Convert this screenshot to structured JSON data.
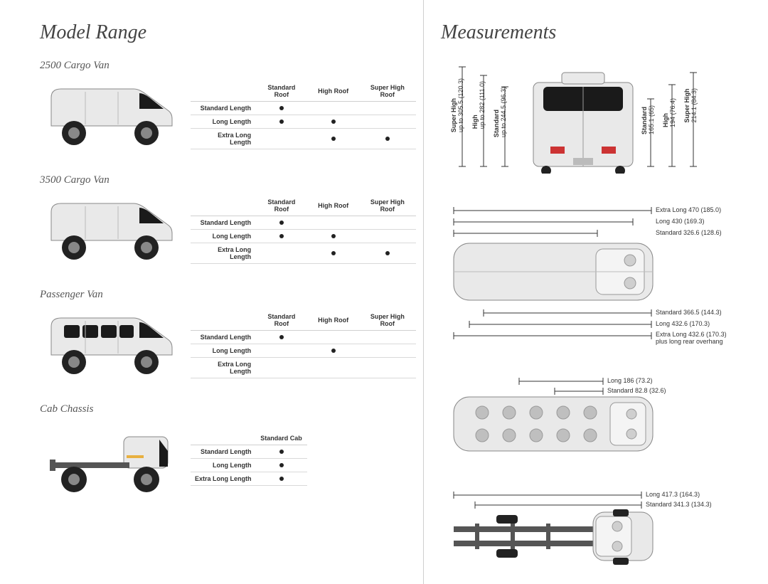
{
  "left": {
    "title": "Model Range",
    "roof_cols": [
      "Standard Roof",
      "High Roof",
      "Super High Roof"
    ],
    "length_rows": [
      "Standard Length",
      "Long Length",
      "Extra Long Length"
    ],
    "cab_cols": [
      "Standard Cab"
    ],
    "models": [
      {
        "name": "2500 Cargo Van",
        "type": "van",
        "cols": "roof",
        "dots": [
          [
            true,
            false,
            false
          ],
          [
            true,
            true,
            false
          ],
          [
            false,
            true,
            true
          ]
        ]
      },
      {
        "name": "3500 Cargo Van",
        "type": "van",
        "cols": "roof",
        "dots": [
          [
            true,
            false,
            false
          ],
          [
            true,
            true,
            false
          ],
          [
            false,
            true,
            true
          ]
        ]
      },
      {
        "name": "Passenger Van",
        "type": "passenger",
        "cols": "roof",
        "dots": [
          [
            true,
            false,
            false
          ],
          [
            false,
            true,
            false
          ],
          [
            false,
            false,
            false
          ]
        ]
      },
      {
        "name": "Cab Chassis",
        "type": "chassis",
        "cols": "cab",
        "dots": [
          [
            true
          ],
          [
            true
          ],
          [
            true
          ]
        ]
      }
    ]
  },
  "right": {
    "title": "Measurements",
    "rear": {
      "heights_left": [
        {
          "label": "Super High",
          "value": "up to 305.5 (120.3)"
        },
        {
          "label": "High",
          "value": "up to 282 (111.0)"
        },
        {
          "label": "Standard",
          "value": "up to 244.5 (96.3)"
        }
      ],
      "heights_right": [
        {
          "label": "Standard",
          "value": "165.1 (65)"
        },
        {
          "label": "High",
          "value": "194 (76.4)"
        },
        {
          "label": "Super High",
          "value": "214.1 (84.3)"
        }
      ]
    },
    "top_cargo": {
      "lengths": [
        {
          "label": "Extra Long 470 (185.0)"
        },
        {
          "label": "Long 430 (169.3)"
        },
        {
          "label": "Standard 326.6 (128.6)"
        }
      ],
      "rear_lengths": [
        {
          "label": "Standard 366.5 (144.3)"
        },
        {
          "label": "Long 432.6 (170.3)"
        },
        {
          "label": "Extra Long 432.6 (170.3)",
          "note": "plus long rear overhang"
        }
      ]
    },
    "top_passenger": {
      "lengths": [
        {
          "label": "Long 186 (73.2)"
        },
        {
          "label": "Standard 82.8 (32.6)"
        }
      ]
    },
    "top_chassis": {
      "lengths": [
        {
          "label": "Long 417.3 (164.3)"
        },
        {
          "label": "Standard 341.3 (134.3)"
        }
      ]
    }
  },
  "style": {
    "bg": "#ffffff",
    "text": "#3a3a3a",
    "title_fontsize": 28,
    "model_fontsize": 15,
    "table_fontsize": 9,
    "dim_fontsize": 9,
    "line_color": "#333333",
    "van_body": "#e9e9e9",
    "van_stroke": "#888888",
    "van_dark": "#555555",
    "glass": "#1a1a1a",
    "rule": "#cfcfcf"
  }
}
